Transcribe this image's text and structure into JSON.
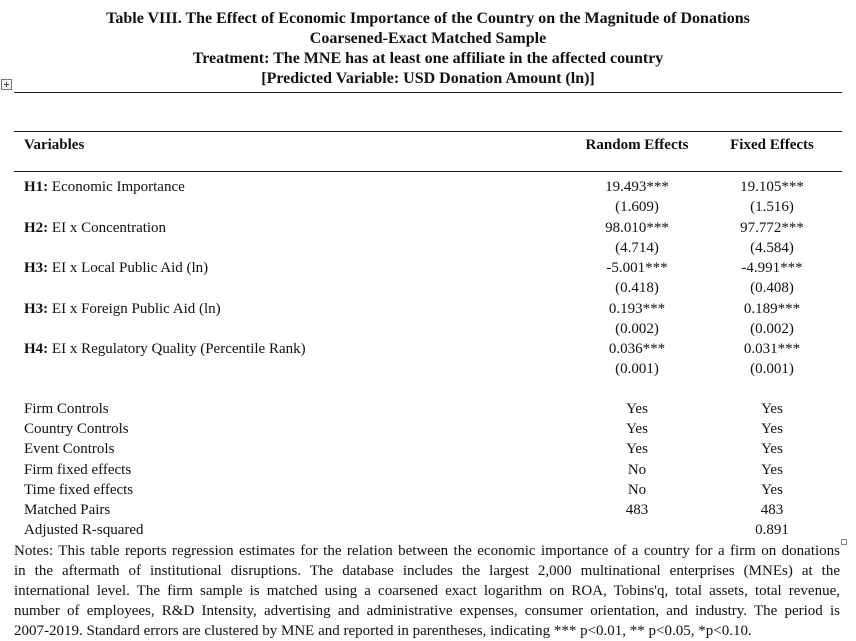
{
  "title": {
    "line1": "Table VIII. The Effect of Economic Importance of the Country on the Magnitude of Donations",
    "line2": "Coarsened-Exact Matched Sample",
    "line3": "Treatment: The MNE has at least one affiliate in the affected country",
    "line4": "[Predicted Variable: USD Donation Amount (ln)]"
  },
  "table": {
    "headers": {
      "variables": "Variables",
      "random": "Random Effects",
      "fixed": "Fixed Effects"
    },
    "hypotheses": [
      {
        "tag": "H1:",
        "label": " Economic Importance",
        "re": "19.493***",
        "re_se": "(1.609)",
        "fe": "19.105***",
        "fe_se": "(1.516)"
      },
      {
        "tag": "H2:",
        "label": " EI x Concentration",
        "re": "98.010***",
        "re_se": "(4.714)",
        "fe": "97.772***",
        "fe_se": "(4.584)"
      },
      {
        "tag": "H3:",
        "label": " EI x Local Public Aid (ln)",
        "re": "-5.001***",
        "re_se": "(0.418)",
        "fe": "-4.991***",
        "fe_se": "(0.408)"
      },
      {
        "tag": "H3:",
        "label": " EI x Foreign Public Aid (ln)",
        "re": "0.193***",
        "re_se": "(0.002)",
        "fe": "0.189***",
        "fe_se": "(0.002)"
      },
      {
        "tag": "H4:",
        "label": " EI x Regulatory Quality (Percentile Rank)",
        "re": "0.036***",
        "re_se": "(0.001)",
        "fe": "0.031***",
        "fe_se": "(0.001)"
      }
    ],
    "controls": [
      {
        "label": "Firm Controls",
        "re": "Yes",
        "fe": "Yes"
      },
      {
        "label": "Country Controls",
        "re": "Yes",
        "fe": "Yes"
      },
      {
        "label": "Event Controls",
        "re": "Yes",
        "fe": "Yes"
      },
      {
        "label": "Firm fixed effects",
        "re": "No",
        "fe": "Yes"
      },
      {
        "label": "Time fixed effects",
        "re": "No",
        "fe": "Yes"
      },
      {
        "label": "Matched Pairs",
        "re": "483",
        "fe": "483"
      },
      {
        "label": "Adjusted R-squared",
        "re": "",
        "fe": "0.891"
      }
    ]
  },
  "notes": {
    "line1": "Notes: This table reports regression estimates for the relation between the economic importance of a country for a firm on donations",
    "line2": "in the aftermath of institutional disruptions. The database includes the largest 2,000 multinational enterprises (MNEs) at the",
    "line3": "international level. The firm sample is matched using a coarsened exact logarithm on ROA, Tobins'q, total assets, total revenue,",
    "line4": "number of employees, R&D Intensity, advertising and administrative expenses, consumer orientation, and industry. The period is",
    "line5": "2007-2019. Standard errors are clustered by MNE and reported in parentheses, indicating *** p<0.01, ** p<0.05, *p<0.10."
  }
}
